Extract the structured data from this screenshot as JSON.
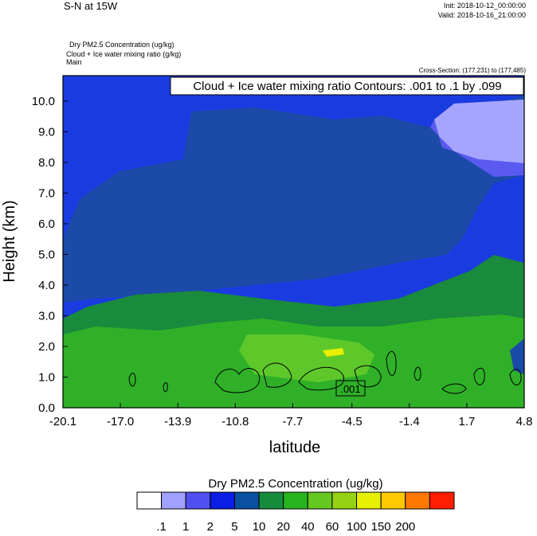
{
  "header": {
    "title": "S-N at 15W",
    "init": "Init: 2018-10-12_00:00:00",
    "valid": "Valid: 2018-10-16_21:00:00",
    "fields": [
      "Dry PM2.5 Concentration   (ug/kg)",
      "Cloud + Ice water mixing ratio   (g/kg)",
      "Main"
    ],
    "cross_section": "Cross-Section: (177,231) to (177,485)"
  },
  "chart_data": {
    "type": "contour",
    "title": "Cloud + Ice water mixing ratio Contours: .001 to .1 by .099",
    "x_label": "latitude",
    "y_label": "Height (km)",
    "xlim": [
      -20.1,
      4.8
    ],
    "xticks": [
      -20.1,
      {
        "value": -17,
        "label": "-17.0"
      },
      -13.9,
      -10.8,
      -7.7,
      -4.5,
      -1.4,
      1.7,
      4.8
    ],
    "ylim": [
      0,
      10.83
    ],
    "yticks": [
      {
        "value": 0,
        "label": "0.0"
      },
      {
        "value": 1,
        "label": "1.0"
      },
      {
        "value": 2,
        "label": "2.0"
      },
      {
        "value": 3,
        "label": "3.0"
      },
      {
        "value": 4,
        "label": "4.0"
      },
      {
        "value": 5,
        "label": "5.0"
      },
      {
        "value": 6,
        "label": "6.0"
      },
      {
        "value": 7,
        "label": "7.0"
      },
      {
        "value": 8,
        "label": "8.0"
      },
      {
        "value": 9,
        "label": "9.0"
      },
      {
        "value": 10,
        "label": "10.0"
      }
    ],
    "contour_label": ".001",
    "colorbar": {
      "title": "Dry PM2.5 Concentration  (ug/kg)",
      "levels": [
        {
          "value": 0.1,
          "label": ".1"
        },
        1,
        2,
        5,
        10,
        20,
        40,
        60,
        100,
        150,
        200
      ],
      "colors": [
        "#ffffff",
        "#a0a0ff",
        "#5050f0",
        "#0a1ee6",
        "#0a50a0",
        "#148c3c",
        "#28b41e",
        "#64c81e",
        "#96d214",
        "#e6f000",
        "#ffc800",
        "#ff7800",
        "#ff1e00"
      ]
    }
  }
}
